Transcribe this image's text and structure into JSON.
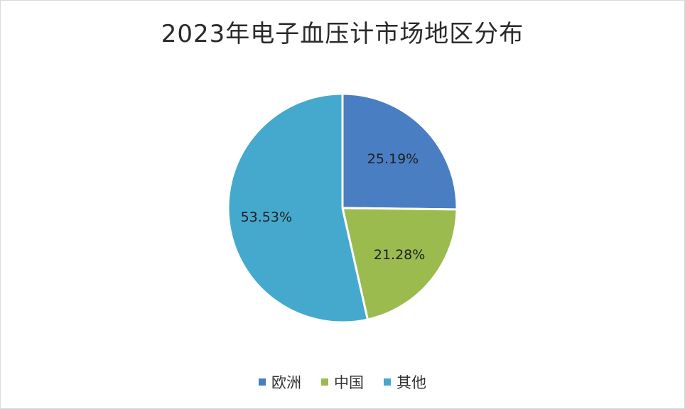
{
  "chart_data": {
    "type": "pie",
    "title": "2023年电子血压计市场地区分布",
    "categories": [
      "欧洲",
      "中国",
      "其他"
    ],
    "values": [
      25.19,
      21.28,
      53.53
    ],
    "labels": [
      "25.19%",
      "21.28%",
      "53.53%"
    ],
    "colors": [
      "#4a7ec2",
      "#9bbb4f",
      "#45a9cd"
    ],
    "legend_position": "bottom"
  }
}
